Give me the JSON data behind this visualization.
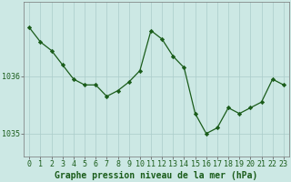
{
  "x": [
    0,
    1,
    2,
    3,
    4,
    5,
    6,
    7,
    8,
    9,
    10,
    11,
    12,
    13,
    14,
    15,
    16,
    17,
    18,
    19,
    20,
    21,
    22,
    23
  ],
  "y": [
    1036.85,
    1036.6,
    1036.45,
    1036.2,
    1035.95,
    1035.85,
    1035.85,
    1035.65,
    1035.75,
    1035.9,
    1036.1,
    1036.8,
    1036.65,
    1036.35,
    1036.15,
    1035.35,
    1035.0,
    1035.1,
    1035.45,
    1035.35,
    1035.45,
    1035.55,
    1035.95,
    1035.85
  ],
  "bg_color": "#cce8e4",
  "line_color": "#1a5c1a",
  "marker_color": "#1a5c1a",
  "grid_color": "#aaccca",
  "axis_label_color": "#1a5c1a",
  "tick_label_color": "#1a5c1a",
  "xlabel": "Graphe pression niveau de la mer (hPa)",
  "ytick_vals": [
    1035,
    1036
  ],
  "ytick_labels": [
    "1035",
    "1036"
  ],
  "xtick_labels": [
    "0",
    "1",
    "2",
    "3",
    "4",
    "5",
    "6",
    "7",
    "8",
    "9",
    "10",
    "11",
    "12",
    "13",
    "14",
    "15",
    "16",
    "17",
    "18",
    "19",
    "20",
    "21",
    "22",
    "23"
  ],
  "xlim": [
    -0.5,
    23.5
  ],
  "ylim": [
    1034.6,
    1037.3
  ],
  "tick_fontsize": 6,
  "xlabel_fontsize": 7
}
